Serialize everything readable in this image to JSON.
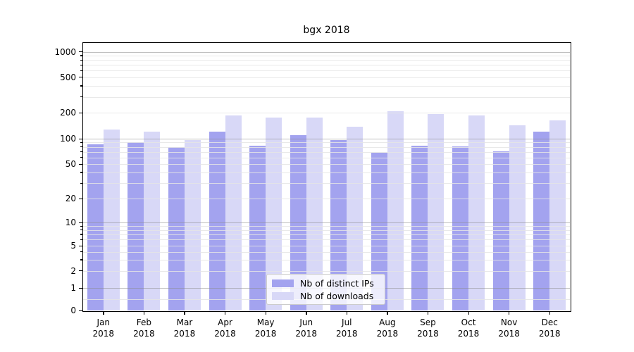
{
  "title": "bgx 2018",
  "legend": {
    "items": [
      {
        "label": "Nb of distinct IPs",
        "color": "#a3a3ef"
      },
      {
        "label": "Nb of downloads",
        "color": "#d8d8f7"
      }
    ]
  },
  "chart_data": {
    "type": "bar",
    "title": "bgx 2018",
    "categories": [
      "Jan",
      "Feb",
      "Mar",
      "Apr",
      "May",
      "Jun",
      "Jul",
      "Aug",
      "Sep",
      "Oct",
      "Nov",
      "Dec"
    ],
    "category_year": "2018",
    "series": [
      {
        "name": "Nb of distinct IPs",
        "color": "#a3a3ef",
        "values": [
          86,
          90,
          79,
          121,
          83,
          110,
          96,
          68,
          83,
          81,
          71,
          121
        ]
      },
      {
        "name": "Nb of downloads",
        "color": "#d8d8f7",
        "values": [
          127,
          120,
          97,
          187,
          174,
          176,
          138,
          208,
          193,
          185,
          143,
          162
        ]
      }
    ],
    "yscale": "symlog",
    "ylim": [
      0,
      1280
    ],
    "y_ticks": [
      0,
      1,
      2,
      5,
      10,
      20,
      50,
      100,
      200,
      500,
      1000
    ],
    "grid": true,
    "legend_position": "lower center",
    "xlabel": "",
    "ylabel": ""
  }
}
